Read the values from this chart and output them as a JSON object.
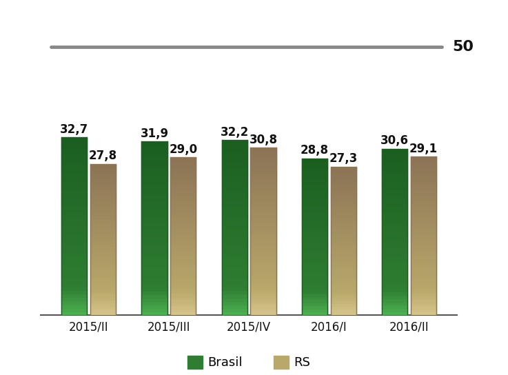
{
  "categories": [
    "2015/II",
    "2015/III",
    "2015/IV",
    "2016/I",
    "2016/II"
  ],
  "brasil_values": [
    32.7,
    31.9,
    32.2,
    28.8,
    30.6
  ],
  "rs_values": [
    27.8,
    29.0,
    30.8,
    27.3,
    29.1
  ],
  "brasil_color_top": "#4CAF50",
  "brasil_color_mid": "#2E7D32",
  "brasil_color_dark": "#1B5E20",
  "rs_color_top": "#D4C48A",
  "rs_color_mid": "#B8A86A",
  "rs_color_dark": "#8B7355",
  "reference_line_color": "#888888",
  "reference_label": "50",
  "bar_width": 0.32,
  "ylim": [
    0,
    40
  ],
  "value_fontsize": 12,
  "legend_fontsize": 13,
  "xtick_fontsize": 12,
  "background_color": "#FFFFFF",
  "label_color": "#111111"
}
